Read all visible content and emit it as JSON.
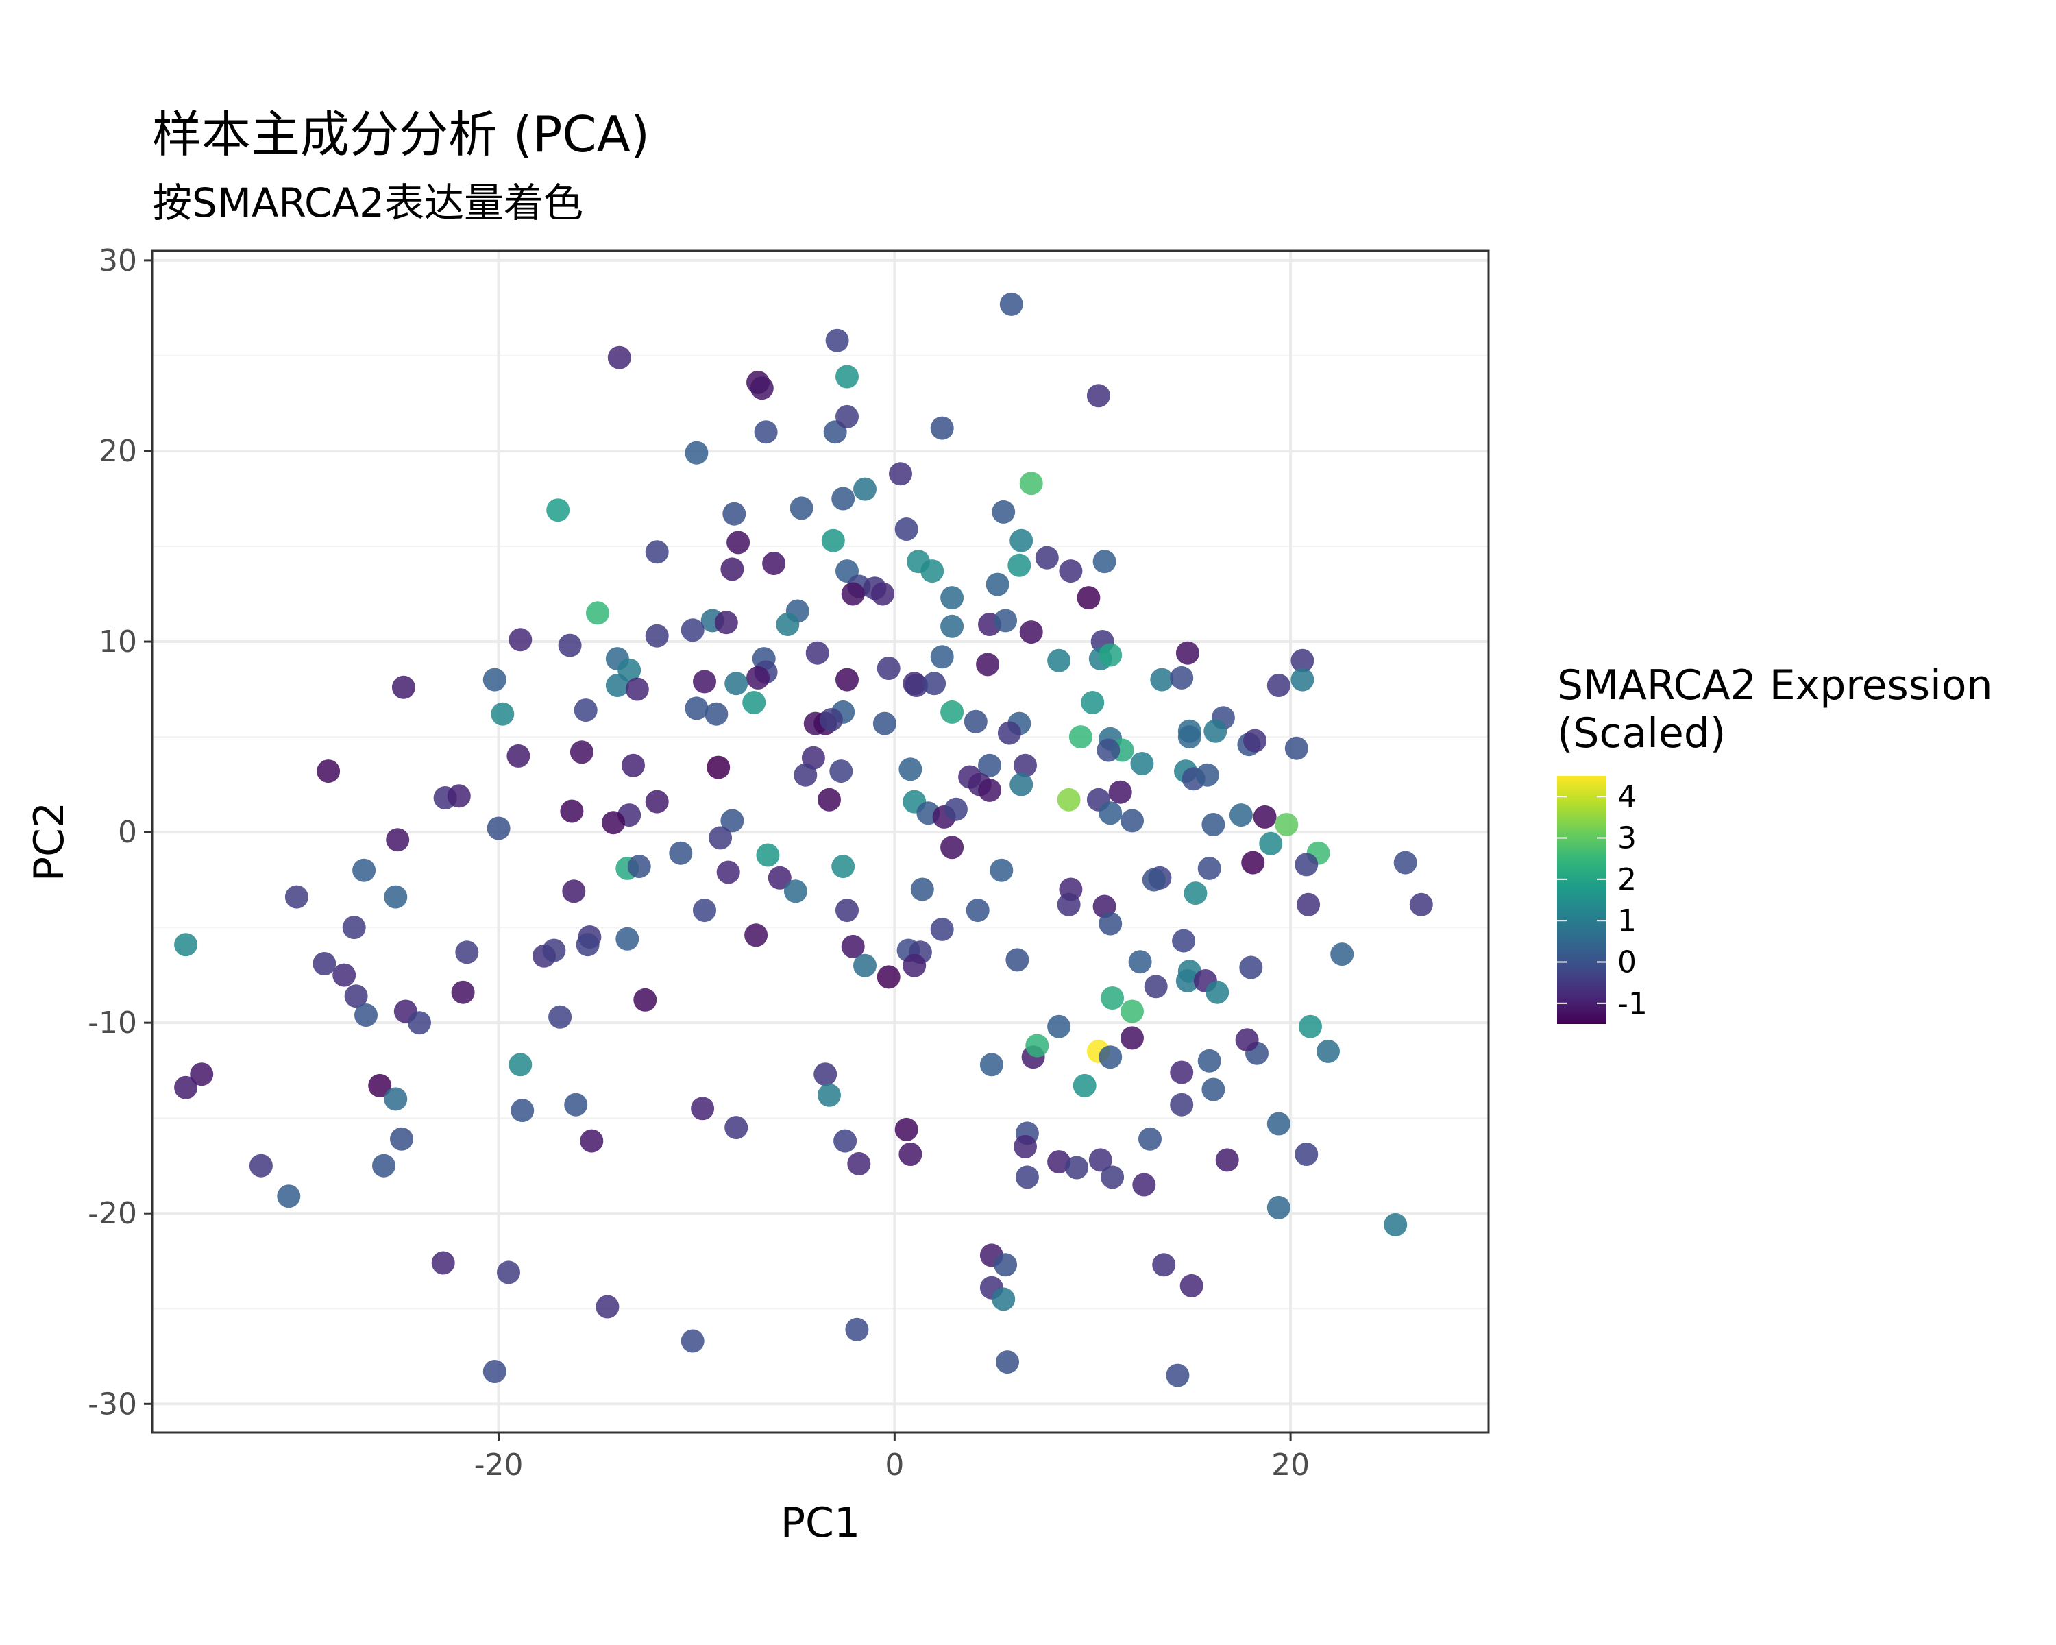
{
  "chart_data": {
    "type": "scatter",
    "title": "样本主成分分析 (PCA)",
    "subtitle": "按SMARCA2表达量着色",
    "xlabel": "PC1",
    "ylabel": "PC2",
    "xlim": [
      -37.5,
      30
    ],
    "ylim": [
      -31.5,
      30.5
    ],
    "x_ticks": [
      -20,
      0,
      20
    ],
    "y_ticks": [
      30,
      20,
      10,
      0,
      -10,
      -20,
      -30
    ],
    "x_tick_labels": [
      "-20",
      "0",
      "20"
    ],
    "y_tick_labels": [
      "30",
      "20",
      "10",
      "0",
      "-10",
      "-20",
      "-30"
    ],
    "grid": true,
    "legend": {
      "title_lines": [
        "SMARCA2 Expression",
        "(Scaled)"
      ],
      "placement": "right",
      "range": [
        -1.5,
        4.5
      ],
      "ticks": [
        4,
        3,
        2,
        1,
        0,
        -1
      ],
      "tick_labels": [
        "4",
        "3",
        "2",
        "1",
        "0",
        "-1"
      ],
      "palette": [
        "#440154",
        "#482878",
        "#3e4a89",
        "#31688e",
        "#26828e",
        "#1f9e89",
        "#35b779",
        "#6ece58",
        "#b5de2b",
        "#fde725"
      ]
    },
    "points": [
      [
        5.9,
        27.7,
        0.1
      ],
      [
        -2.9,
        25.8,
        -0.3
      ],
      [
        -13.9,
        24.9,
        -0.8
      ],
      [
        -6.9,
        23.6,
        -1.2
      ],
      [
        -6.7,
        23.3,
        -1.1
      ],
      [
        -2.4,
        23.9,
        1.6
      ],
      [
        10.3,
        22.9,
        -0.6
      ],
      [
        -6.5,
        21.0,
        -0.1
      ],
      [
        -3.0,
        21.0,
        0.1
      ],
      [
        -2.4,
        21.8,
        -0.4
      ],
      [
        2.4,
        21.2,
        0.0
      ],
      [
        -10.0,
        19.9,
        0.3
      ],
      [
        0.3,
        18.8,
        -0.6
      ],
      [
        6.9,
        18.3,
        2.7
      ],
      [
        -1.5,
        18.0,
        0.8
      ],
      [
        -2.6,
        17.5,
        0.2
      ],
      [
        -17.0,
        16.9,
        1.8
      ],
      [
        -8.1,
        16.7,
        0.0
      ],
      [
        -4.7,
        17.0,
        0.2
      ],
      [
        5.5,
        16.8,
        0.2
      ],
      [
        0.6,
        15.9,
        -0.3
      ],
      [
        -7.9,
        15.2,
        -1.2
      ],
      [
        -3.1,
        15.3,
        1.7
      ],
      [
        6.4,
        15.3,
        1.1
      ],
      [
        -12.0,
        14.7,
        -0.3
      ],
      [
        -8.2,
        13.8,
        -1.0
      ],
      [
        -6.1,
        14.1,
        -1.1
      ],
      [
        -2.4,
        13.7,
        0.3
      ],
      [
        1.2,
        14.2,
        1.4
      ],
      [
        1.9,
        13.7,
        1.4
      ],
      [
        6.3,
        14.0,
        1.6
      ],
      [
        7.7,
        14.4,
        -0.5
      ],
      [
        8.9,
        13.7,
        -0.6
      ],
      [
        10.6,
        14.2,
        0.3
      ],
      [
        -1.8,
        12.9,
        -0.2
      ],
      [
        -1.0,
        12.8,
        -0.6
      ],
      [
        -2.1,
        12.5,
        -1.2
      ],
      [
        -0.6,
        12.5,
        -0.8
      ],
      [
        2.9,
        12.3,
        0.6
      ],
      [
        5.2,
        13.0,
        0.4
      ],
      [
        9.8,
        12.3,
        -1.4
      ],
      [
        -15.0,
        11.5,
        2.5
      ],
      [
        -9.2,
        11.1,
        0.7
      ],
      [
        -8.5,
        11.0,
        -0.9
      ],
      [
        -10.2,
        10.6,
        -0.3
      ],
      [
        -4.9,
        11.6,
        0.3
      ],
      [
        -5.4,
        10.9,
        1.0
      ],
      [
        2.9,
        10.8,
        0.6
      ],
      [
        4.8,
        10.9,
        -0.9
      ],
      [
        5.6,
        11.1,
        0.2
      ],
      [
        6.9,
        10.5,
        -1.2
      ],
      [
        10.5,
        10.0,
        -0.5
      ],
      [
        -18.9,
        10.1,
        -0.8
      ],
      [
        -16.4,
        9.8,
        -0.5
      ],
      [
        -12.0,
        10.3,
        -0.4
      ],
      [
        -14.0,
        9.1,
        0.5
      ],
      [
        -13.4,
        8.5,
        1.0
      ],
      [
        -14.0,
        7.7,
        0.9
      ],
      [
        -6.6,
        9.1,
        0.1
      ],
      [
        -6.5,
        8.4,
        -0.3
      ],
      [
        -6.9,
        8.1,
        -1.1
      ],
      [
        -3.9,
        9.4,
        -0.6
      ],
      [
        -2.4,
        8.0,
        -1.3
      ],
      [
        -0.3,
        8.6,
        -0.5
      ],
      [
        1.0,
        7.8,
        -0.7
      ],
      [
        2.4,
        9.2,
        0.3
      ],
      [
        4.7,
        8.8,
        -1.2
      ],
      [
        8.3,
        9.0,
        1.1
      ],
      [
        10.4,
        9.1,
        1.1
      ],
      [
        10.9,
        9.3,
        2.0
      ],
      [
        14.8,
        9.4,
        -1.2
      ],
      [
        20.6,
        9.0,
        -0.5
      ],
      [
        -24.8,
        7.6,
        -1.0
      ],
      [
        -20.2,
        8.0,
        0.3
      ],
      [
        -13.0,
        7.5,
        -0.8
      ],
      [
        -9.6,
        7.9,
        -1.1
      ],
      [
        -8.0,
        7.8,
        0.8
      ],
      [
        -2.6,
        6.3,
        0.3
      ],
      [
        1.1,
        7.7,
        -0.6
      ],
      [
        2.0,
        7.8,
        -0.3
      ],
      [
        13.5,
        8.0,
        0.9
      ],
      [
        14.5,
        8.1,
        -0.1
      ],
      [
        19.4,
        7.7,
        -0.5
      ],
      [
        20.6,
        8.0,
        0.9
      ],
      [
        -19.8,
        6.2,
        1.3
      ],
      [
        -15.6,
        6.4,
        -0.2
      ],
      [
        -10.0,
        6.5,
        0.1
      ],
      [
        -9.0,
        6.2,
        0.1
      ],
      [
        -7.1,
        6.8,
        1.7
      ],
      [
        -4.0,
        5.7,
        -1.2
      ],
      [
        -3.5,
        5.7,
        -1.3
      ],
      [
        -3.2,
        5.9,
        -0.4
      ],
      [
        -0.5,
        5.7,
        0.1
      ],
      [
        2.9,
        6.3,
        2.0
      ],
      [
        4.1,
        5.8,
        0.0
      ],
      [
        6.3,
        5.7,
        0.3
      ],
      [
        5.8,
        5.2,
        -0.5
      ],
      [
        10.0,
        6.8,
        1.6
      ],
      [
        14.9,
        5.3,
        0.6
      ],
      [
        14.9,
        5.0,
        0.5
      ],
      [
        16.6,
        6.0,
        -0.1
      ],
      [
        16.2,
        5.3,
        0.9
      ],
      [
        17.9,
        4.6,
        0.1
      ],
      [
        18.2,
        4.8,
        -0.6
      ],
      [
        20.3,
        4.4,
        0.0
      ],
      [
        9.4,
        5.0,
        2.5
      ],
      [
        10.9,
        4.9,
        0.7
      ],
      [
        11.5,
        4.3,
        2.2
      ],
      [
        10.8,
        4.3,
        -0.1
      ],
      [
        12.5,
        3.6,
        1.1
      ],
      [
        -19.0,
        4.0,
        -1.0
      ],
      [
        -15.8,
        4.2,
        -1.2
      ],
      [
        -13.2,
        3.5,
        -0.9
      ],
      [
        -8.9,
        3.4,
        -1.6
      ],
      [
        -4.1,
        3.9,
        -0.7
      ],
      [
        -4.5,
        3.0,
        -0.5
      ],
      [
        -2.7,
        3.2,
        -0.3
      ],
      [
        0.8,
        3.3,
        0.4
      ],
      [
        4.8,
        3.5,
        0.1
      ],
      [
        6.6,
        3.5,
        -0.6
      ],
      [
        14.7,
        3.2,
        1.1
      ],
      [
        15.1,
        2.8,
        -0.1
      ],
      [
        15.8,
        3.0,
        0.2
      ],
      [
        -28.6,
        3.2,
        -1.3
      ],
      [
        -22.7,
        1.8,
        -0.6
      ],
      [
        -22.0,
        1.9,
        -0.9
      ],
      [
        -3.3,
        1.7,
        -1.3
      ],
      [
        1.0,
        1.6,
        1.3
      ],
      [
        3.8,
        2.9,
        -0.8
      ],
      [
        4.3,
        2.5,
        -0.9
      ],
      [
        4.8,
        2.2,
        -1.1
      ],
      [
        6.4,
        2.5,
        0.8
      ],
      [
        8.8,
        1.7,
        3.4
      ],
      [
        10.3,
        1.7,
        -0.5
      ],
      [
        11.4,
        2.1,
        -1.1
      ],
      [
        10.9,
        1.0,
        0.3
      ],
      [
        12.0,
        0.6,
        0.1
      ],
      [
        -16.3,
        1.1,
        -1.3
      ],
      [
        -13.4,
        0.9,
        -0.7
      ],
      [
        -12.0,
        1.6,
        -1.0
      ],
      [
        -14.2,
        0.5,
        -1.3
      ],
      [
        -20.0,
        0.2,
        0.0
      ],
      [
        -8.2,
        0.6,
        0.1
      ],
      [
        1.7,
        1.0,
        0.2
      ],
      [
        2.5,
        0.8,
        -1.1
      ],
      [
        3.1,
        1.2,
        -0.3
      ],
      [
        16.1,
        0.4,
        0.2
      ],
      [
        17.5,
        0.9,
        0.5
      ],
      [
        18.7,
        0.8,
        -1.3
      ],
      [
        19.8,
        0.4,
        3.0
      ],
      [
        -25.1,
        -0.4,
        -1.1
      ],
      [
        -8.8,
        -0.3,
        -0.4
      ],
      [
        2.9,
        -0.8,
        -1.2
      ],
      [
        19.0,
        -0.6,
        1.3
      ],
      [
        -26.8,
        -2.0,
        0.3
      ],
      [
        -13.5,
        -1.9,
        2.1
      ],
      [
        -12.9,
        -1.8,
        0.0
      ],
      [
        -10.8,
        -1.1,
        0.1
      ],
      [
        -8.4,
        -2.1,
        -0.8
      ],
      [
        -6.4,
        -1.2,
        1.7
      ],
      [
        -5.8,
        -2.4,
        -0.9
      ],
      [
        -2.6,
        -1.8,
        1.4
      ],
      [
        5.4,
        -2.0,
        0.3
      ],
      [
        13.4,
        -2.4,
        -0.3
      ],
      [
        13.1,
        -2.5,
        0.0
      ],
      [
        15.9,
        -1.9,
        -0.1
      ],
      [
        18.1,
        -1.6,
        -1.4
      ],
      [
        21.4,
        -1.1,
        2.6
      ],
      [
        20.8,
        -1.7,
        -0.3
      ],
      [
        25.8,
        -1.6,
        -0.1
      ],
      [
        -30.2,
        -3.4,
        -0.4
      ],
      [
        -25.2,
        -3.4,
        0.4
      ],
      [
        -16.2,
        -3.1,
        -1.0
      ],
      [
        -9.6,
        -4.1,
        -0.2
      ],
      [
        -5.0,
        -3.1,
        0.6
      ],
      [
        -2.4,
        -4.1,
        -0.5
      ],
      [
        1.4,
        -3.0,
        0.2
      ],
      [
        4.2,
        -4.1,
        0.1
      ],
      [
        8.9,
        -3.0,
        -0.8
      ],
      [
        8.8,
        -3.8,
        -0.6
      ],
      [
        10.6,
        -3.9,
        -1.0
      ],
      [
        10.9,
        -4.8,
        0.0
      ],
      [
        15.2,
        -3.2,
        1.3
      ],
      [
        20.9,
        -3.8,
        -0.6
      ],
      [
        26.6,
        -3.8,
        -0.5
      ],
      [
        -27.3,
        -5.0,
        -0.4
      ],
      [
        -15.4,
        -5.5,
        -0.5
      ],
      [
        -15.5,
        -5.9,
        -0.3
      ],
      [
        -13.5,
        -5.6,
        0.3
      ],
      [
        -7.0,
        -5.4,
        -1.2
      ],
      [
        -2.1,
        -6.0,
        -1.1
      ],
      [
        0.7,
        -6.2,
        -0.1
      ],
      [
        1.3,
        -6.3,
        -0.4
      ],
      [
        2.4,
        -5.1,
        -0.3
      ],
      [
        14.6,
        -5.7,
        -0.2
      ],
      [
        -35.8,
        -5.9,
        1.3
      ],
      [
        -21.6,
        -6.3,
        -0.4
      ],
      [
        -17.7,
        -6.5,
        -0.6
      ],
      [
        -17.2,
        -6.2,
        -0.4
      ],
      [
        -1.5,
        -7.0,
        0.7
      ],
      [
        -0.3,
        -7.6,
        -1.4
      ],
      [
        1.0,
        -7.0,
        -0.9
      ],
      [
        6.2,
        -6.7,
        0.0
      ],
      [
        12.4,
        -6.8,
        0.3
      ],
      [
        13.2,
        -8.1,
        -0.4
      ],
      [
        14.8,
        -7.8,
        0.9
      ],
      [
        14.9,
        -7.3,
        1.0
      ],
      [
        15.7,
        -7.8,
        -0.8
      ],
      [
        18.0,
        -7.1,
        -0.2
      ],
      [
        22.6,
        -6.4,
        0.4
      ],
      [
        -28.8,
        -6.9,
        -0.5
      ],
      [
        -27.8,
        -7.5,
        -0.7
      ],
      [
        -27.2,
        -8.6,
        -0.5
      ],
      [
        -26.7,
        -9.6,
        0.1
      ],
      [
        -21.8,
        -8.4,
        -1.2
      ],
      [
        -24.7,
        -9.4,
        -0.9
      ],
      [
        -24.0,
        -10.0,
        -0.3
      ],
      [
        -16.9,
        -9.7,
        -0.3
      ],
      [
        -12.6,
        -8.8,
        -1.3
      ],
      [
        16.3,
        -8.4,
        1.1
      ],
      [
        11.0,
        -8.7,
        2.2
      ],
      [
        12.0,
        -9.4,
        2.6
      ],
      [
        -35.0,
        -12.7,
        -1.1
      ],
      [
        -35.8,
        -13.4,
        -1.0
      ],
      [
        -26.0,
        -13.3,
        -1.4
      ],
      [
        -25.2,
        -14.0,
        0.6
      ],
      [
        -18.9,
        -12.2,
        1.3
      ],
      [
        -18.8,
        -14.6,
        0.1
      ],
      [
        -16.1,
        -14.3,
        0.1
      ],
      [
        -15.3,
        -16.2,
        -1.1
      ],
      [
        -9.7,
        -14.5,
        -0.9
      ],
      [
        -8.0,
        -15.5,
        -0.5
      ],
      [
        -3.5,
        -12.7,
        -0.5
      ],
      [
        -3.3,
        -13.8,
        1.0
      ],
      [
        -2.5,
        -16.2,
        -0.3
      ],
      [
        -1.8,
        -17.4,
        -0.8
      ],
      [
        0.6,
        -15.6,
        -1.3
      ],
      [
        0.8,
        -16.9,
        -1.1
      ],
      [
        4.9,
        -12.2,
        0.3
      ],
      [
        7.0,
        -11.8,
        -1.0
      ],
      [
        7.2,
        -11.2,
        2.4
      ],
      [
        8.3,
        -10.2,
        0.3
      ],
      [
        9.6,
        -13.3,
        1.6
      ],
      [
        10.3,
        -11.5,
        4.5
      ],
      [
        10.9,
        -11.8,
        0.2
      ],
      [
        12.0,
        -10.8,
        -1.2
      ],
      [
        14.5,
        -12.6,
        -0.8
      ],
      [
        15.9,
        -12.0,
        0.2
      ],
      [
        16.1,
        -13.5,
        0.2
      ],
      [
        18.3,
        -11.6,
        0.0
      ],
      [
        17.8,
        -10.9,
        -0.9
      ],
      [
        21.0,
        -10.2,
        1.6
      ],
      [
        21.9,
        -11.5,
        0.7
      ],
      [
        14.5,
        -14.3,
        -0.4
      ],
      [
        19.4,
        -15.3,
        0.4
      ],
      [
        -25.8,
        -17.5,
        0.1
      ],
      [
        -24.9,
        -16.1,
        0.0
      ],
      [
        -32.0,
        -17.5,
        -0.5
      ],
      [
        -30.6,
        -19.1,
        0.3
      ],
      [
        6.7,
        -15.8,
        -0.1
      ],
      [
        6.6,
        -16.5,
        -0.8
      ],
      [
        6.7,
        -18.1,
        -0.3
      ],
      [
        8.3,
        -17.3,
        -0.9
      ],
      [
        9.2,
        -17.6,
        -0.4
      ],
      [
        10.4,
        -17.2,
        -0.6
      ],
      [
        11.0,
        -18.1,
        -0.4
      ],
      [
        12.6,
        -18.5,
        -0.8
      ],
      [
        12.9,
        -16.1,
        0.1
      ],
      [
        16.8,
        -17.2,
        -1.0
      ],
      [
        20.8,
        -16.9,
        -0.3
      ],
      [
        19.4,
        -19.7,
        0.5
      ],
      [
        25.3,
        -20.6,
        0.9
      ],
      [
        -22.8,
        -22.6,
        -0.8
      ],
      [
        -19.5,
        -23.1,
        -0.4
      ],
      [
        -14.5,
        -24.9,
        -0.6
      ],
      [
        -10.2,
        -26.7,
        -0.1
      ],
      [
        -1.9,
        -26.1,
        -0.1
      ],
      [
        4.9,
        -22.2,
        -1.0
      ],
      [
        5.6,
        -22.7,
        0.0
      ],
      [
        4.9,
        -23.9,
        -0.6
      ],
      [
        5.5,
        -24.5,
        0.9
      ],
      [
        13.6,
        -22.7,
        -0.6
      ],
      [
        15.0,
        -23.8,
        -0.8
      ],
      [
        -20.2,
        -28.3,
        -0.1
      ],
      [
        5.7,
        -27.8,
        0.0
      ],
      [
        14.3,
        -28.5,
        -0.1
      ]
    ]
  }
}
